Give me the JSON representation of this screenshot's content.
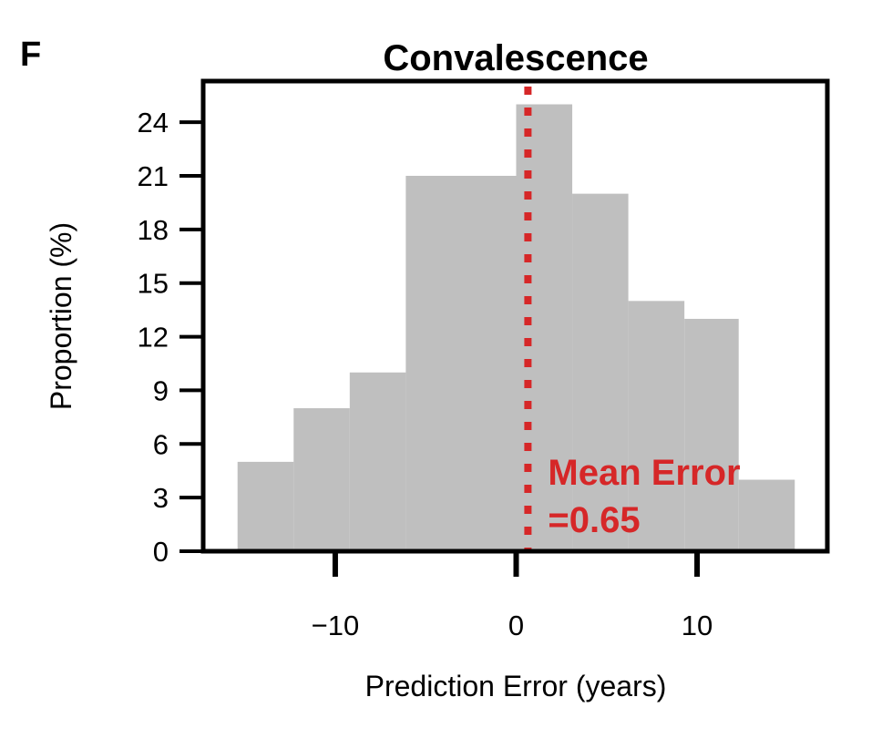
{
  "panel_label": "F",
  "chart_data": {
    "type": "bar",
    "title": "Convalescence",
    "xlabel": "Prediction Error (years)",
    "ylabel": "Proportion (%)",
    "xlim": [
      -17.3,
      17.2
    ],
    "ylim": [
      0,
      26.3
    ],
    "xticks": [
      -10,
      0,
      10
    ],
    "xtick_labels": [
      "−10",
      "0",
      "10"
    ],
    "yticks": [
      0,
      3,
      6,
      9,
      12,
      15,
      18,
      21,
      24
    ],
    "grid": false,
    "bins": [
      {
        "x0": -15.4,
        "x1": -12.3,
        "value": 5
      },
      {
        "x0": -12.3,
        "x1": -9.2,
        "value": 8
      },
      {
        "x0": -9.2,
        "x1": -6.1,
        "value": 10
      },
      {
        "x0": -6.1,
        "x1": 0.0,
        "value": 21
      },
      {
        "x0": 0.0,
        "x1": 3.1,
        "value": 25
      },
      {
        "x0": 3.1,
        "x1": 6.2,
        "value": 20
      },
      {
        "x0": 6.2,
        "x1": 9.3,
        "value": 14
      },
      {
        "x0": 9.3,
        "x1": 12.3,
        "value": 13
      },
      {
        "x0": 12.3,
        "x1": 15.4,
        "value": 4
      }
    ],
    "bar_color": "#bfbfbf",
    "mean_line": {
      "value": 0.65,
      "color": "#d62728",
      "label_line1": "Mean Error",
      "label_line2": "=0.65"
    }
  }
}
